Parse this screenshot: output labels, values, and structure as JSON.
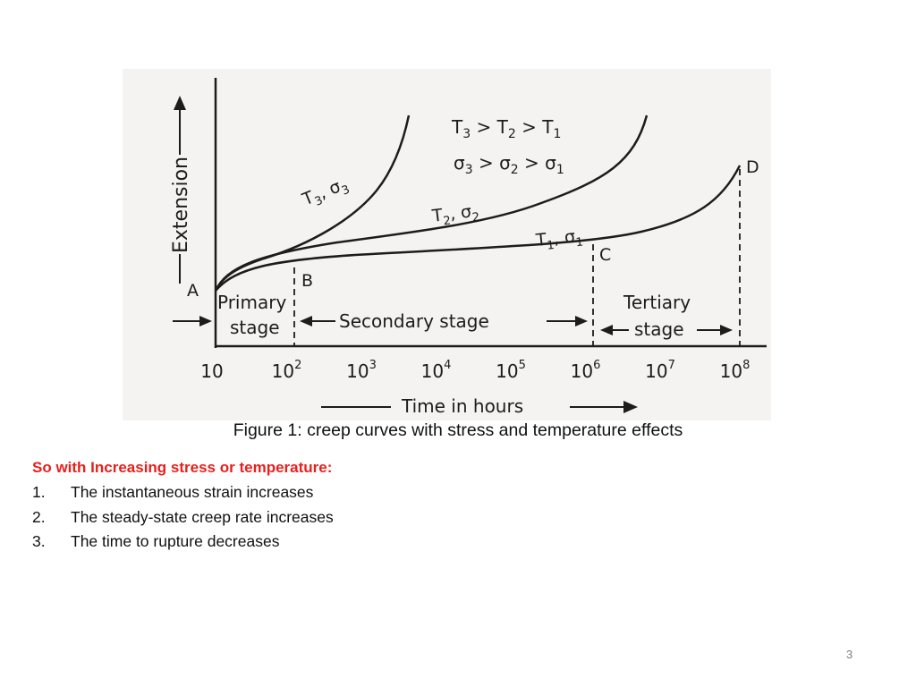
{
  "figure": {
    "y_axis_label": "Extension",
    "x_axis_label": "Time in hours",
    "x_ticks": [
      {
        "base": "10",
        "exp": ""
      },
      {
        "base": "10",
        "exp": "2"
      },
      {
        "base": "10",
        "exp": "3"
      },
      {
        "base": "10",
        "exp": "4"
      },
      {
        "base": "10",
        "exp": "5"
      },
      {
        "base": "10",
        "exp": "6"
      },
      {
        "base": "10",
        "exp": "7"
      },
      {
        "base": "10",
        "exp": "8"
      }
    ],
    "points": {
      "a": "A",
      "b": "B",
      "c": "C",
      "d": "D"
    },
    "stages": {
      "primary_1": "Primary",
      "primary_2": "stage",
      "secondary": "Secondary stage",
      "tertiary_1": "Tertiary",
      "tertiary_2": "stage"
    },
    "legend": {
      "temp_order": [
        "T",
        "3",
        " > T",
        "2",
        " > T",
        "1"
      ],
      "stress_order": [
        "σ",
        "3",
        " > σ",
        "2",
        " > σ",
        "1"
      ]
    },
    "curves": [
      {
        "t": "T",
        "t_sub": "3",
        "s": "σ",
        "s_sub": "3"
      },
      {
        "t": "T",
        "t_sub": "2",
        "s": "σ",
        "s_sub": "2"
      },
      {
        "t": "T",
        "t_sub": "1",
        "s": "σ",
        "s_sub": "1"
      }
    ]
  },
  "caption": "Figure 1: creep curves with stress and temperature effects",
  "heading": "So with Increasing stress or temperature:",
  "points": [
    {
      "num": "1.",
      "text": "The instantaneous strain increases"
    },
    {
      "num": "2.",
      "text": "The steady-state creep rate increases"
    },
    {
      "num": "3.",
      "text": "The time to rupture decreases"
    }
  ],
  "page_number": "3",
  "colors": {
    "heading": "#e8201c",
    "ink": "#1c1c1c",
    "figure_bg": "#f4f3f1"
  }
}
